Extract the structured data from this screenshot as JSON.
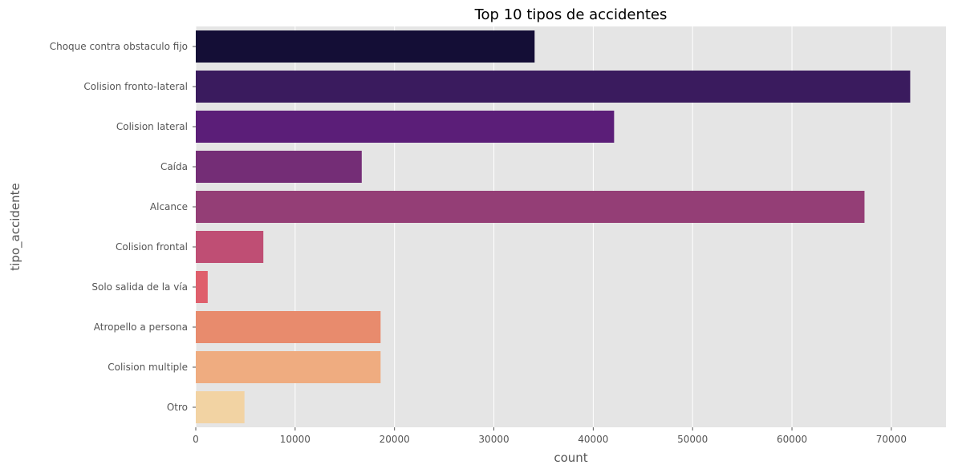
{
  "chart_data": {
    "type": "bar",
    "orientation": "horizontal",
    "title": "Top 10 tipos de accidentes",
    "xlabel": "count",
    "ylabel": "tipo_accidente",
    "categories": [
      "Choque contra obstaculo fijo",
      "Colision fronto-lateral",
      "Colision lateral",
      "Caída",
      "Alcance",
      "Colision frontal",
      "Solo salida de la vía",
      "Atropello a persona",
      "Colision multiple",
      "Otro"
    ],
    "values": [
      34100,
      71900,
      42100,
      16700,
      67300,
      6800,
      1200,
      18600,
      18600,
      4900
    ],
    "colors": [
      "#140e36",
      "#3a1b5e",
      "#5b1e78",
      "#742d76",
      "#943e76",
      "#bf4e74",
      "#df5f6c",
      "#e88b6d",
      "#efac80",
      "#f2d3a3"
    ],
    "xlim": [
      0,
      75500
    ],
    "xticks": [
      0,
      10000,
      20000,
      30000,
      40000,
      50000,
      60000,
      70000
    ],
    "grid": true,
    "background": "#e5e5e5",
    "grid_color": "#ffffff"
  }
}
